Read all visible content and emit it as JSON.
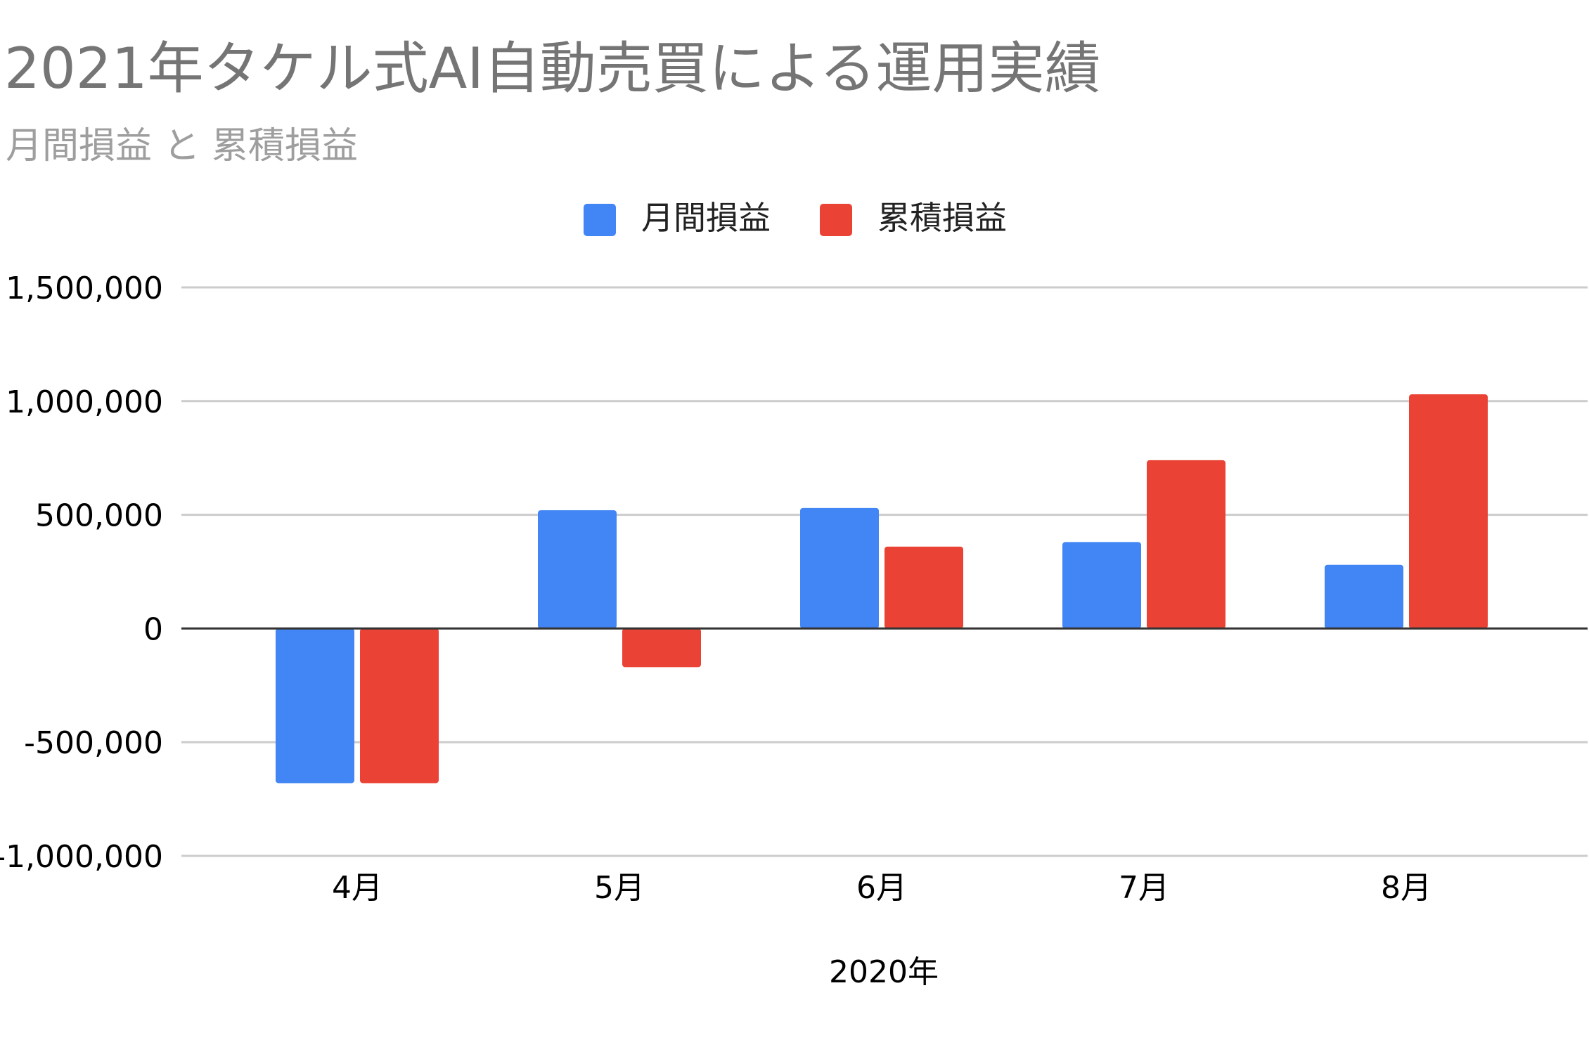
{
  "chart_data": {
    "type": "bar",
    "title": "2021年タケル式AI自動売買による運用実績",
    "subtitle": "月間損益 と 累積損益",
    "xlabel": "2020年",
    "ylabel": "",
    "categories": [
      "4月",
      "5月",
      "6月",
      "7月",
      "8月"
    ],
    "series": [
      {
        "name": "月間損益",
        "color": "#4285f4",
        "values": [
          -680000,
          520000,
          530000,
          380000,
          280000
        ]
      },
      {
        "name": "累積損益",
        "color": "#ea4335",
        "values": [
          -680000,
          -170000,
          360000,
          740000,
          1030000
        ]
      }
    ],
    "ylim": [
      -1000000,
      1500000
    ],
    "yticks": [
      1500000,
      1000000,
      500000,
      0,
      -500000,
      -1000000
    ],
    "ytick_labels": [
      "1,500,000",
      "1,000,000",
      "500,000",
      "0",
      "-500,000",
      "-1,000,000"
    ],
    "grid": true,
    "legend": "top-center"
  }
}
